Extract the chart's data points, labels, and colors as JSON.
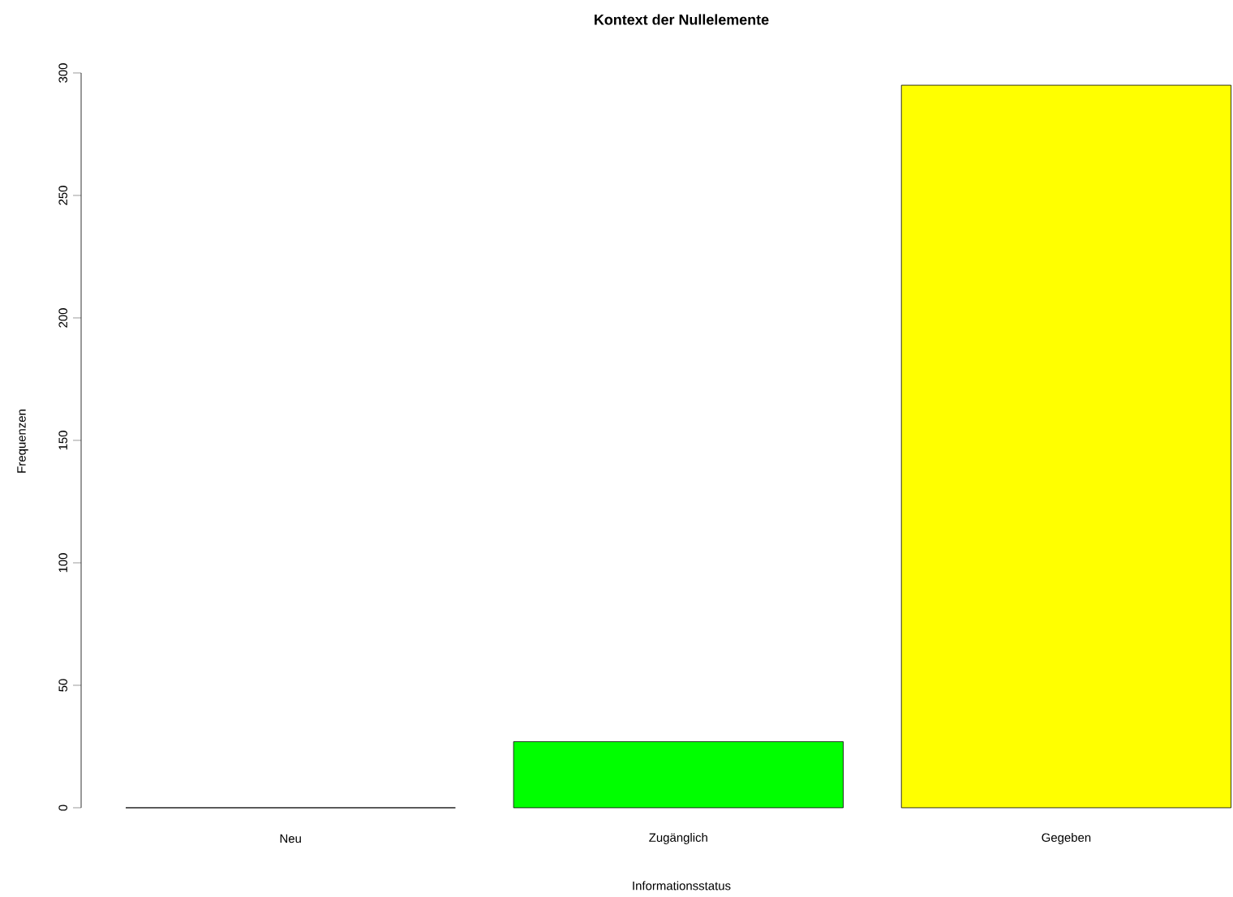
{
  "chart_data": {
    "type": "bar",
    "title": "Kontext der Nullelemente",
    "xlabel": "Informationsstatus",
    "ylabel": "Frequenzen",
    "categories": [
      "Neu",
      "Zugänglich",
      "Gegeben"
    ],
    "values": [
      0,
      27,
      295
    ],
    "colors": [
      "#ffff00",
      "#00ff00",
      "#ffff00"
    ],
    "ylim": [
      0,
      300
    ],
    "yticks": [
      0,
      50,
      100,
      150,
      200,
      250,
      300
    ],
    "grid": false
  }
}
